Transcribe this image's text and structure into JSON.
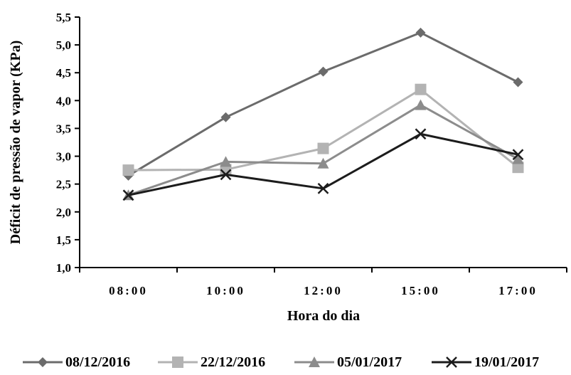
{
  "chart_data": {
    "type": "line",
    "xlabel": "Hora do dia",
    "ylabel": "Déficit de pressão de vapor (KPa)",
    "categories": [
      "08:00",
      "10:00",
      "12:00",
      "15:00",
      "17:00"
    ],
    "ylim": [
      1.0,
      5.5
    ],
    "yticks": [
      "1,0",
      "1,5",
      "2,0",
      "2,5",
      "3,0",
      "3,5",
      "4,0",
      "4,5",
      "5,0",
      "5,5"
    ],
    "grid": false,
    "legend_position": "bottom",
    "series": [
      {
        "name": "08/12/2016",
        "values": [
          2.65,
          3.7,
          4.52,
          5.22,
          4.33
        ],
        "color": "#6b6b6b",
        "marker": "diamond"
      },
      {
        "name": "22/12/2016",
        "values": [
          2.75,
          2.76,
          3.14,
          4.2,
          2.8
        ],
        "color": "#b3b3b3",
        "marker": "square"
      },
      {
        "name": "05/01/2017",
        "values": [
          2.3,
          2.9,
          2.87,
          3.92,
          2.95
        ],
        "color": "#8c8c8c",
        "marker": "triangle"
      },
      {
        "name": "19/01/2017",
        "values": [
          2.3,
          2.67,
          2.42,
          3.4,
          3.03
        ],
        "color": "#1c1c1c",
        "marker": "x"
      }
    ]
  }
}
